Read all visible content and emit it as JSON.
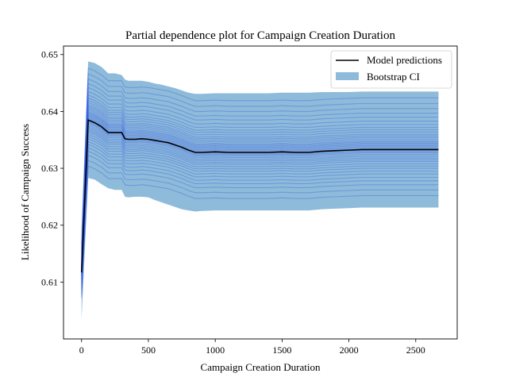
{
  "chart_data": {
    "type": "line",
    "title": "Partial dependence plot for Campaign Creation Duration",
    "xlabel": "Campaign Creation Duration",
    "ylabel": "Likelihood of Campaign Success",
    "xlim": [
      -135,
      2810
    ],
    "ylim": [
      0.6,
      0.6515
    ],
    "xticks": [
      0,
      500,
      1000,
      1500,
      2000,
      2500
    ],
    "yticks": [
      0.61,
      0.62,
      0.63,
      0.64,
      0.65
    ],
    "grid": false,
    "legend_position": "top-right",
    "x": [
      0,
      50,
      100,
      150,
      200,
      250,
      300,
      325,
      350,
      400,
      450,
      500,
      550,
      600,
      650,
      700,
      750,
      800,
      850,
      900,
      1000,
      1100,
      1200,
      1300,
      1400,
      1500,
      1600,
      1700,
      1800,
      1900,
      2000,
      2100,
      2200,
      2300,
      2400,
      2500,
      2600,
      2670
    ],
    "series": [
      {
        "name": "Model predictions",
        "color": "#000000",
        "values": [
          0.6117,
          0.6385,
          0.638,
          0.6373,
          0.6363,
          0.6363,
          0.6363,
          0.6352,
          0.6351,
          0.6351,
          0.6352,
          0.6351,
          0.6349,
          0.6347,
          0.6345,
          0.6341,
          0.6337,
          0.6332,
          0.6328,
          0.6328,
          0.6329,
          0.6328,
          0.6328,
          0.6328,
          0.6328,
          0.6329,
          0.6328,
          0.6328,
          0.633,
          0.6331,
          0.6332,
          0.6333,
          0.6333,
          0.6333,
          0.6333,
          0.6333,
          0.6333,
          0.6333
        ]
      },
      {
        "name": "Bootstrap CI",
        "color": "#8ebbd9",
        "lower": [
          0.6035,
          0.6283,
          0.628,
          0.6272,
          0.6265,
          0.6262,
          0.6262,
          0.625,
          0.6249,
          0.625,
          0.625,
          0.6249,
          0.6244,
          0.624,
          0.6236,
          0.6232,
          0.6228,
          0.6226,
          0.6224,
          0.6225,
          0.6226,
          0.6226,
          0.6226,
          0.6226,
          0.6226,
          0.6226,
          0.6226,
          0.6226,
          0.6228,
          0.6229,
          0.623,
          0.6231,
          0.6231,
          0.6231,
          0.6231,
          0.6231,
          0.6231,
          0.6231
        ],
        "upper": [
          0.6195,
          0.6488,
          0.6485,
          0.6478,
          0.6467,
          0.6467,
          0.6464,
          0.6456,
          0.6454,
          0.6454,
          0.6454,
          0.6452,
          0.6449,
          0.6447,
          0.6444,
          0.6441,
          0.6437,
          0.6433,
          0.6431,
          0.6431,
          0.6432,
          0.6432,
          0.6432,
          0.6432,
          0.6432,
          0.6433,
          0.6433,
          0.6433,
          0.6434,
          0.6434,
          0.6434,
          0.6435,
          0.6435,
          0.6435,
          0.6435,
          0.6435,
          0.6435,
          0.6435
        ]
      }
    ],
    "bootstrap_line_color": "#3a5fe6",
    "bootstrap_offsets": [
      -0.0081,
      -0.0071,
      -0.0062,
      -0.0055,
      -0.0049,
      -0.0043,
      -0.0038,
      -0.0033,
      -0.0029,
      -0.0025,
      -0.0021,
      -0.0018,
      -0.0015,
      -0.0012,
      -0.0009,
      -0.0006,
      -0.0004,
      -0.0002,
      0.0001,
      0.0003,
      0.0005,
      0.0007,
      0.0009,
      0.0011,
      0.0013,
      0.0015,
      0.0018,
      0.0021,
      0.0024,
      0.0027,
      0.0031,
      0.0035,
      0.0039,
      0.0044,
      0.005,
      0.0057,
      0.0064,
      0.0072,
      0.0081,
      0.0091
    ]
  }
}
